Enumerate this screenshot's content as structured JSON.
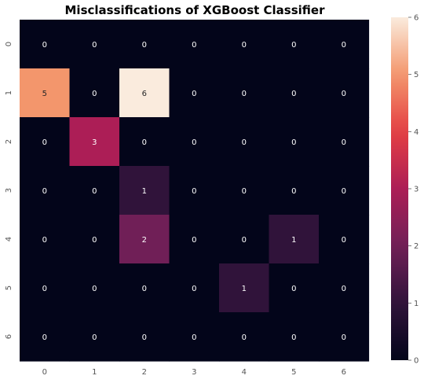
{
  "chart_data": {
    "type": "heatmap",
    "title": "Misclassifications of XGBoost Classifier",
    "x_categories": [
      "0",
      "1",
      "2",
      "3",
      "4",
      "5",
      "6"
    ],
    "y_categories": [
      "0",
      "1",
      "2",
      "3",
      "4",
      "5",
      "6"
    ],
    "values": [
      [
        0,
        0,
        0,
        0,
        0,
        0,
        0
      ],
      [
        5,
        0,
        6,
        0,
        0,
        0,
        0
      ],
      [
        0,
        3,
        0,
        0,
        0,
        0,
        0
      ],
      [
        0,
        0,
        1,
        0,
        0,
        0,
        0
      ],
      [
        0,
        0,
        2,
        0,
        0,
        1,
        0
      ],
      [
        0,
        0,
        0,
        0,
        1,
        0,
        0
      ],
      [
        0,
        0,
        0,
        0,
        0,
        0,
        0
      ]
    ],
    "annotate": true,
    "colormap": "rocket",
    "vmin": 0,
    "vmax": 6,
    "colorbar": {
      "ticks": [
        "0",
        "1",
        "2",
        "3",
        "4",
        "5",
        "6"
      ],
      "range": [
        0,
        6
      ]
    },
    "xlabel": "",
    "ylabel": ""
  },
  "colors": {
    "tick_text": "#555555",
    "title_text": "#000000",
    "annotation_dark_bg_text": "#ffffff",
    "annotation_light_bg_text": "#262626"
  }
}
